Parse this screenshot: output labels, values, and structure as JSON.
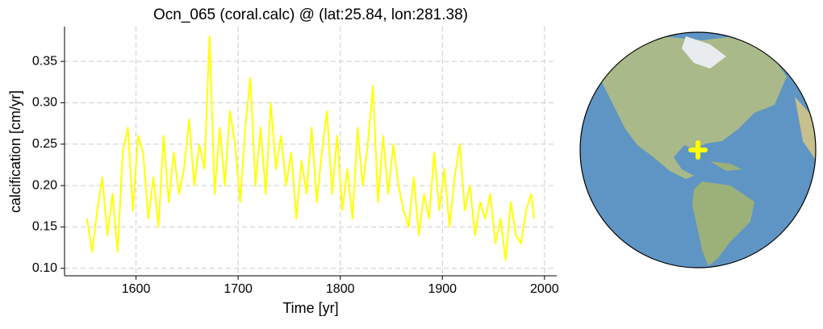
{
  "chart_data": {
    "type": "line",
    "title": "Ocn_065 (coral.calc) @ (lat:25.84, lon:281.38)",
    "x_label": "Time [yr]",
    "y_label": "calcification [cm/yr]",
    "x": [
      1552,
      1557,
      1562,
      1567,
      1572,
      1577,
      1582,
      1587,
      1592,
      1597,
      1602,
      1607,
      1612,
      1617,
      1622,
      1627,
      1632,
      1637,
      1642,
      1647,
      1652,
      1657,
      1662,
      1667,
      1672,
      1677,
      1682,
      1687,
      1692,
      1697,
      1702,
      1707,
      1712,
      1717,
      1722,
      1727,
      1732,
      1737,
      1742,
      1747,
      1752,
      1757,
      1762,
      1767,
      1772,
      1777,
      1782,
      1787,
      1792,
      1797,
      1802,
      1807,
      1812,
      1817,
      1822,
      1827,
      1832,
      1837,
      1842,
      1847,
      1852,
      1857,
      1862,
      1867,
      1872,
      1877,
      1882,
      1887,
      1892,
      1897,
      1902,
      1907,
      1912,
      1917,
      1922,
      1927,
      1932,
      1937,
      1942,
      1947,
      1952,
      1957,
      1962,
      1967,
      1972,
      1977,
      1982,
      1987,
      1990
    ],
    "series": [
      {
        "color": "#ffff00",
        "values": [
          0.16,
          0.12,
          0.17,
          0.21,
          0.14,
          0.19,
          0.12,
          0.24,
          0.27,
          0.17,
          0.26,
          0.24,
          0.16,
          0.21,
          0.15,
          0.26,
          0.18,
          0.24,
          0.19,
          0.22,
          0.28,
          0.2,
          0.25,
          0.22,
          0.38,
          0.19,
          0.27,
          0.2,
          0.29,
          0.25,
          0.18,
          0.27,
          0.33,
          0.2,
          0.27,
          0.19,
          0.3,
          0.22,
          0.26,
          0.2,
          0.24,
          0.16,
          0.23,
          0.19,
          0.27,
          0.18,
          0.24,
          0.29,
          0.19,
          0.26,
          0.17,
          0.22,
          0.16,
          0.27,
          0.2,
          0.25,
          0.32,
          0.18,
          0.26,
          0.19,
          0.25,
          0.2,
          0.17,
          0.15,
          0.21,
          0.14,
          0.19,
          0.16,
          0.24,
          0.17,
          0.22,
          0.15,
          0.21,
          0.25,
          0.17,
          0.2,
          0.14,
          0.18,
          0.16,
          0.19,
          0.13,
          0.16,
          0.11,
          0.18,
          0.14,
          0.13,
          0.17,
          0.19,
          0.16
        ]
      }
    ],
    "xlim": [
      1530,
      2012
    ],
    "ylim": [
      0.091,
      0.392
    ],
    "xticks": [
      1600,
      1700,
      1800,
      1900,
      2000
    ],
    "yticks": [
      {
        "value": 0.1,
        "label": "0.10"
      },
      0.15,
      {
        "value": 0.2,
        "label": "0.20"
      },
      0.25,
      {
        "value": 0.3,
        "label": "0.30"
      },
      0.35
    ],
    "grid": true
  }
}
